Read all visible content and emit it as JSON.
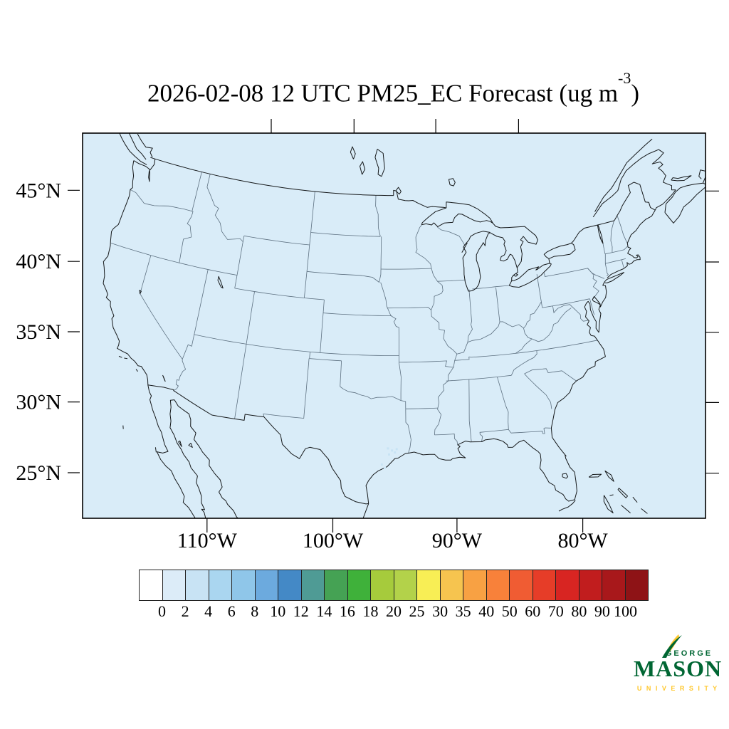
{
  "title": {
    "prefix": "2026-02-08 12 UTC PM25_EC Forecast (ug m",
    "sup": "-3",
    "suffix": ")"
  },
  "map": {
    "background": "#d9ecf8",
    "coast_color": "#15181a",
    "state_color": "#5d7080",
    "frame_color": "#000000",
    "lat_ticks": [
      {
        "label": "45°N",
        "value": 45
      },
      {
        "label": "40°N",
        "value": 40
      },
      {
        "label": "35°N",
        "value": 35
      },
      {
        "label": "30°N",
        "value": 30
      },
      {
        "label": "25°N",
        "value": 25
      }
    ],
    "lon_ticks": [
      {
        "label": "110°W",
        "value": -110
      },
      {
        "label": "100°W",
        "value": -100
      },
      {
        "label": "90°W",
        "value": -90
      },
      {
        "label": "80°W",
        "value": -80
      }
    ]
  },
  "colorbar": {
    "levels": [
      "0",
      "2",
      "4",
      "6",
      "8",
      "10",
      "12",
      "14",
      "16",
      "18",
      "20",
      "25",
      "30",
      "35",
      "40",
      "50",
      "60",
      "70",
      "80",
      "90",
      "100"
    ],
    "colors": [
      "#ffffff",
      "#dcecf8",
      "#c8e3f4",
      "#aad6f0",
      "#8fc6e9",
      "#6caade",
      "#4489c6",
      "#4f9b95",
      "#45a254",
      "#3fb13a",
      "#a6cb3c",
      "#b3d24a",
      "#f8ee55",
      "#f6c44f",
      "#f8a143",
      "#f8813a",
      "#f05c33",
      "#e63d28",
      "#d82522",
      "#c11d1e",
      "#a8181b",
      "#8e1316"
    ]
  },
  "logo": {
    "line1": "GEORGE",
    "line2": "MASON",
    "line3": "U N I V E R S I T Y",
    "green": "#006633",
    "gold": "#ffc72c"
  }
}
